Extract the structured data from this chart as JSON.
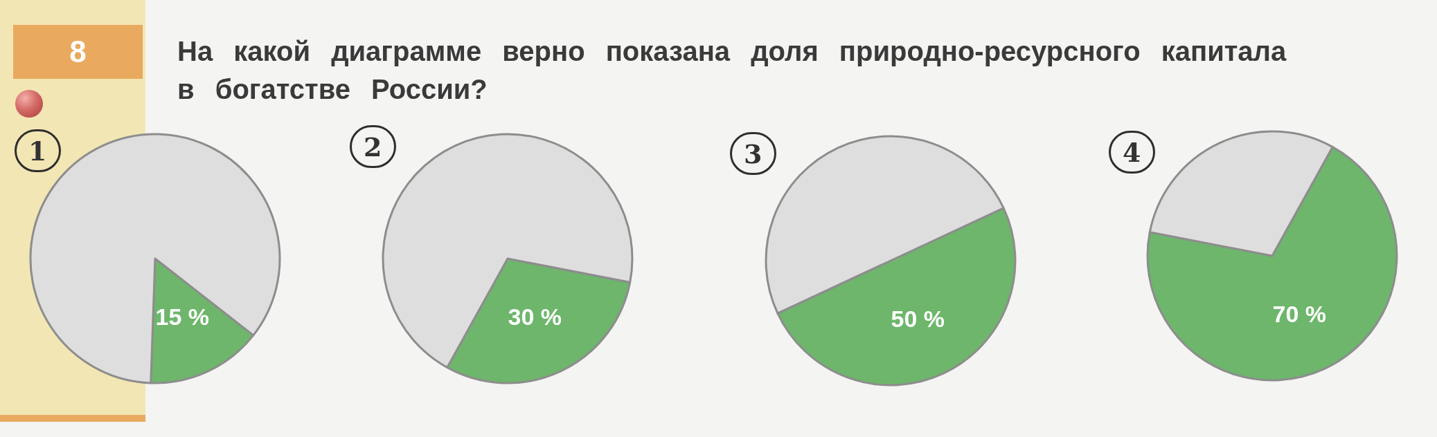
{
  "chart_data": [
    {
      "type": "other",
      "title": "На какой диаграмме верно показана доля природно-ресурсного капитала в богатстве России?",
      "annotations": [
        "8"
      ]
    },
    {
      "type": "pie",
      "title": "1",
      "categories": [
        null,
        null
      ],
      "values": [
        15,
        85
      ],
      "colors": [
        "#6db66b",
        "#dedede"
      ],
      "value_labels": [
        "15 %",
        null
      ]
    },
    {
      "type": "pie",
      "title": "2",
      "categories": [
        null,
        null
      ],
      "values": [
        30,
        70
      ],
      "colors": [
        "#6db66b",
        "#dedede"
      ],
      "value_labels": [
        "30 %",
        null
      ]
    },
    {
      "type": "pie",
      "title": "3",
      "categories": [
        null,
        null
      ],
      "values": [
        50,
        50
      ],
      "colors": [
        "#6db66b",
        "#dedede"
      ],
      "value_labels": [
        "50 %",
        null
      ]
    },
    {
      "type": "pie",
      "title": "4",
      "categories": [
        null,
        null
      ],
      "values": [
        70,
        30
      ],
      "colors": [
        "#6db66b",
        "#dedede"
      ],
      "value_labels": [
        "70 %",
        null
      ]
    }
  ]
}
